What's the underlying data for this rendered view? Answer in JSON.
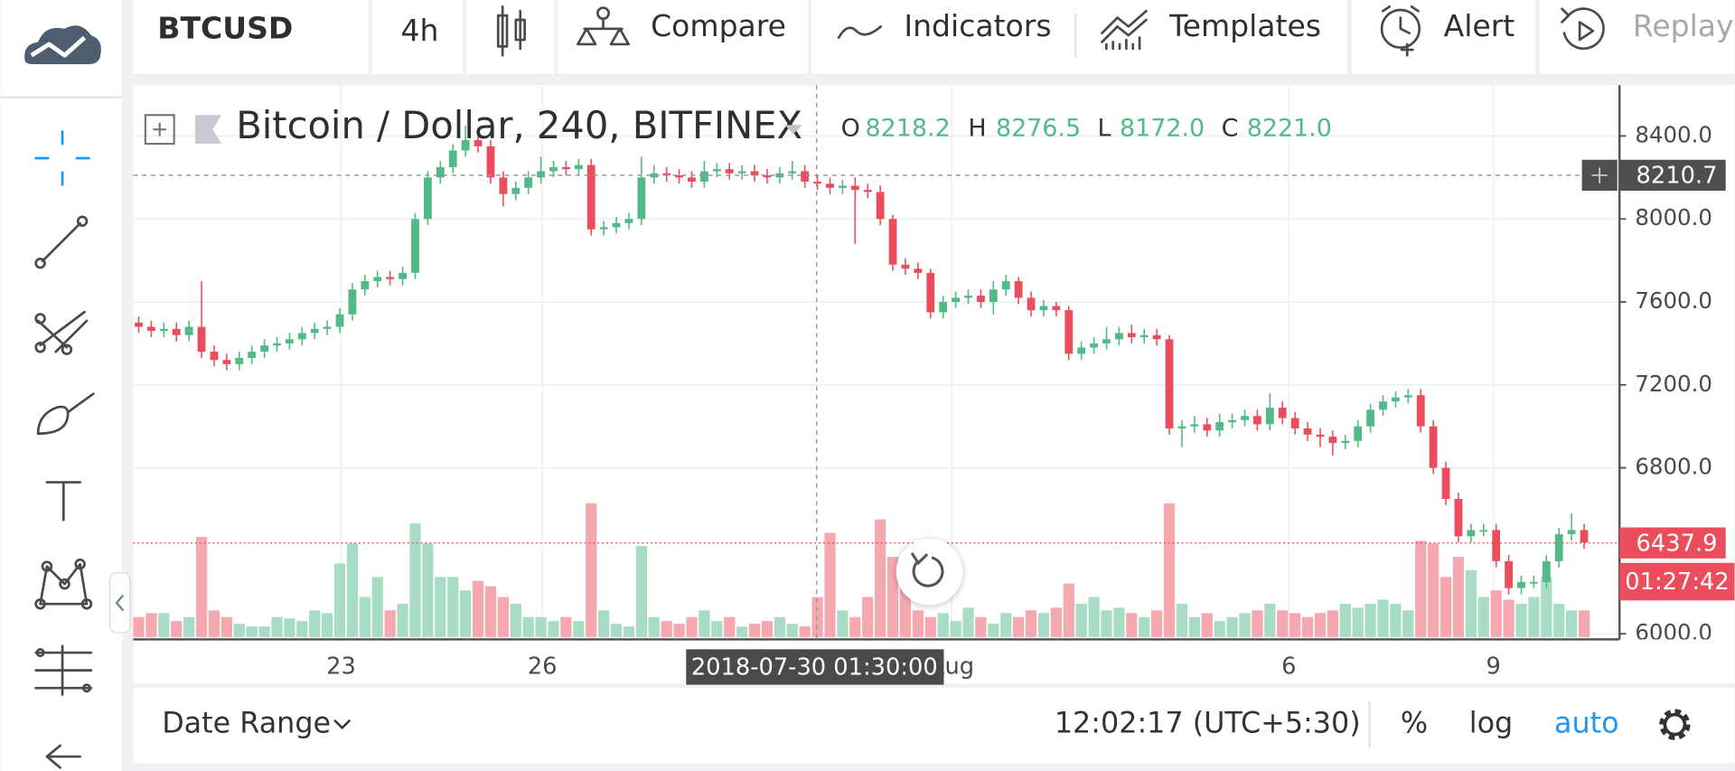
{
  "toolbar": {
    "symbol": "BTCUSD",
    "interval": "4h",
    "compare": "Compare",
    "indicators": "Indicators",
    "templates": "Templates",
    "alert": "Alert",
    "replay": "Replay"
  },
  "chart_data": {
    "type": "candlestick",
    "title": "Bitcoin / Dollar, 240, BITFINEX",
    "legend_ohlc": [
      {
        "label": "O",
        "value": "8218.2"
      },
      {
        "label": "H",
        "value": "8276.5"
      },
      {
        "label": "L",
        "value": "8172.0"
      },
      {
        "label": "C",
        "value": "8221.0"
      }
    ],
    "open": [
      7500,
      7480,
      7460,
      7470,
      7440,
      7480,
      7360,
      7320,
      7300,
      7330,
      7360,
      7390,
      7400,
      7420,
      7450,
      7470,
      7480,
      7540,
      7660,
      7700,
      7720,
      7710,
      7740,
      8000,
      8200,
      8250,
      8330,
      8380,
      8350,
      8200,
      8120,
      8150,
      8200,
      8230,
      8250,
      8240,
      8260,
      7950,
      7960,
      7980,
      8000,
      8200,
      8220,
      8210,
      8200,
      8180,
      8230,
      8240,
      8220,
      8230,
      8210,
      8200,
      8220,
      8230,
      8180,
      8170,
      8150,
      8160,
      8140,
      8130,
      8000,
      7780,
      7760,
      7740,
      7550,
      7600,
      7620,
      7630,
      7600,
      7660,
      7700,
      7620,
      7560,
      7580,
      7560,
      7350,
      7380,
      7400,
      7420,
      7450,
      7430,
      7440,
      7420,
      6990,
      7000,
      7010,
      6980,
      7020,
      7030,
      7050,
      7010,
      7090,
      7040,
      6990,
      6960,
      6950,
      6920,
      6930,
      7000,
      7080,
      7120,
      7140,
      7150,
      7000,
      6800,
      6650,
      6470,
      6500,
      6500,
      6350,
      6220,
      6250,
      6250,
      6350,
      6480,
      6500
    ],
    "high": [
      7530,
      7510,
      7500,
      7500,
      7510,
      7700,
      7390,
      7350,
      7360,
      7390,
      7420,
      7430,
      7450,
      7480,
      7500,
      7510,
      7570,
      7690,
      7730,
      7750,
      7750,
      7770,
      8030,
      8230,
      8280,
      8360,
      8450,
      8410,
      8380,
      8230,
      8180,
      8230,
      8300,
      8280,
      8280,
      8290,
      8290,
      7990,
      8010,
      8030,
      8300,
      8260,
      8250,
      8240,
      8230,
      8280,
      8270,
      8270,
      8260,
      8260,
      8240,
      8250,
      8280,
      8260,
      8210,
      8200,
      8190,
      8200,
      8170,
      8160,
      8020,
      7810,
      7790,
      7760,
      7630,
      7650,
      7660,
      7660,
      7700,
      7730,
      7720,
      7650,
      7610,
      7600,
      7580,
      7410,
      7430,
      7480,
      7480,
      7490,
      7470,
      7470,
      7440,
      7030,
      7050,
      7040,
      7060,
      7060,
      7080,
      7080,
      7160,
      7120,
      7070,
      7020,
      6990,
      6980,
      6960,
      7030,
      7110,
      7150,
      7170,
      7180,
      7180,
      7030,
      6830,
      6680,
      6530,
      6530,
      6530,
      6380,
      6280,
      6280,
      6380,
      6510,
      6580,
      6530
    ],
    "low": [
      7450,
      7430,
      7430,
      7410,
      7410,
      7330,
      7290,
      7270,
      7270,
      7300,
      7330,
      7360,
      7370,
      7390,
      7420,
      7440,
      7450,
      7510,
      7630,
      7670,
      7680,
      7680,
      7710,
      7970,
      8170,
      8220,
      8300,
      8320,
      8170,
      8060,
      8090,
      8120,
      8170,
      8200,
      8210,
      8210,
      7920,
      7920,
      7930,
      7950,
      7970,
      8170,
      8180,
      8170,
      8150,
      8150,
      8200,
      8190,
      8190,
      8180,
      8170,
      8170,
      8190,
      8150,
      8140,
      8120,
      8120,
      7880,
      8100,
      7970,
      7750,
      7730,
      7710,
      7520,
      7520,
      7570,
      7590,
      7570,
      7540,
      7630,
      7590,
      7530,
      7530,
      7530,
      7320,
      7320,
      7350,
      7370,
      7390,
      7400,
      7400,
      7390,
      6960,
      6900,
      6970,
      6950,
      6950,
      6990,
      7000,
      6980,
      6980,
      7010,
      6960,
      6930,
      6900,
      6860,
      6890,
      6900,
      6970,
      7050,
      7090,
      7110,
      6970,
      6770,
      6620,
      6440,
      6440,
      6470,
      6320,
      6190,
      6190,
      6220,
      6220,
      6320,
      6450,
      6410
    ],
    "close": [
      7480,
      7460,
      7470,
      7440,
      7480,
      7360,
      7320,
      7300,
      7330,
      7360,
      7390,
      7400,
      7420,
      7450,
      7470,
      7480,
      7540,
      7660,
      7700,
      7720,
      7710,
      7740,
      8000,
      8200,
      8250,
      8330,
      8380,
      8350,
      8200,
      8120,
      8150,
      8200,
      8230,
      8250,
      8240,
      8260,
      7950,
      7960,
      7980,
      8000,
      8200,
      8220,
      8210,
      8200,
      8180,
      8230,
      8240,
      8220,
      8230,
      8210,
      8200,
      8220,
      8230,
      8180,
      8170,
      8150,
      8160,
      8140,
      8130,
      8000,
      7780,
      7760,
      7740,
      7550,
      7600,
      7620,
      7630,
      7600,
      7660,
      7700,
      7620,
      7560,
      7580,
      7560,
      7350,
      7380,
      7400,
      7420,
      7450,
      7430,
      7440,
      7420,
      6990,
      7000,
      7010,
      6980,
      7020,
      7030,
      7050,
      7010,
      7090,
      7040,
      6990,
      6960,
      6950,
      6920,
      6930,
      7000,
      7080,
      7120,
      7140,
      7150,
      7000,
      6800,
      6650,
      6470,
      6500,
      6500,
      6350,
      6220,
      6250,
      6250,
      6350,
      6480,
      6500,
      6440
    ],
    "volume": [
      15,
      18,
      18,
      12,
      15,
      75,
      20,
      15,
      10,
      8,
      8,
      15,
      14,
      12,
      20,
      18,
      55,
      70,
      30,
      45,
      20,
      25,
      85,
      70,
      45,
      45,
      35,
      42,
      38,
      30,
      25,
      15,
      15,
      12,
      15,
      12,
      100,
      20,
      10,
      8,
      68,
      15,
      12,
      10,
      15,
      20,
      12,
      15,
      8,
      10,
      12,
      15,
      10,
      8,
      30,
      78,
      20,
      15,
      30,
      88,
      60,
      38,
      20,
      15,
      18,
      12,
      22,
      15,
      10,
      18,
      15,
      20,
      18,
      22,
      40,
      25,
      30,
      20,
      22,
      18,
      15,
      20,
      100,
      25,
      15,
      18,
      12,
      15,
      18,
      20,
      25,
      20,
      18,
      15,
      18,
      20,
      25,
      22,
      25,
      28,
      25,
      20,
      72,
      70,
      45,
      60,
      50,
      30,
      35,
      28,
      25,
      30,
      45,
      25,
      20,
      20
    ],
    "up_color": "#53b987",
    "down_color": "#eb4d5c",
    "volume_up_color": "#a9dcc4",
    "volume_down_color": "#f5a8b0",
    "ylim": [
      5973,
      8645
    ],
    "yticks": [
      {
        "value": 6000,
        "label": "6000.0"
      },
      {
        "value": 6800,
        "label": "6800.0"
      },
      {
        "value": 7200,
        "label": "7200.0"
      },
      {
        "value": 7600,
        "label": "7600.0"
      },
      {
        "value": 8000,
        "label": "8000.0"
      },
      {
        "value": 8400,
        "label": "8400.0"
      }
    ],
    "x_labels": [
      "23",
      "26",
      "Aug",
      "6",
      "9"
    ],
    "crosshair_time": "2018-07-30 01:30:00",
    "crosshair_price": 8210.7,
    "last_price": 6437.9,
    "countdown": "01:27:42",
    "grid": true
  },
  "bottom_bar": {
    "date_range": "Date Range",
    "clock": "12:02:17 (UTC+5:30)",
    "percent": "%",
    "log": "log",
    "auto": "auto"
  }
}
